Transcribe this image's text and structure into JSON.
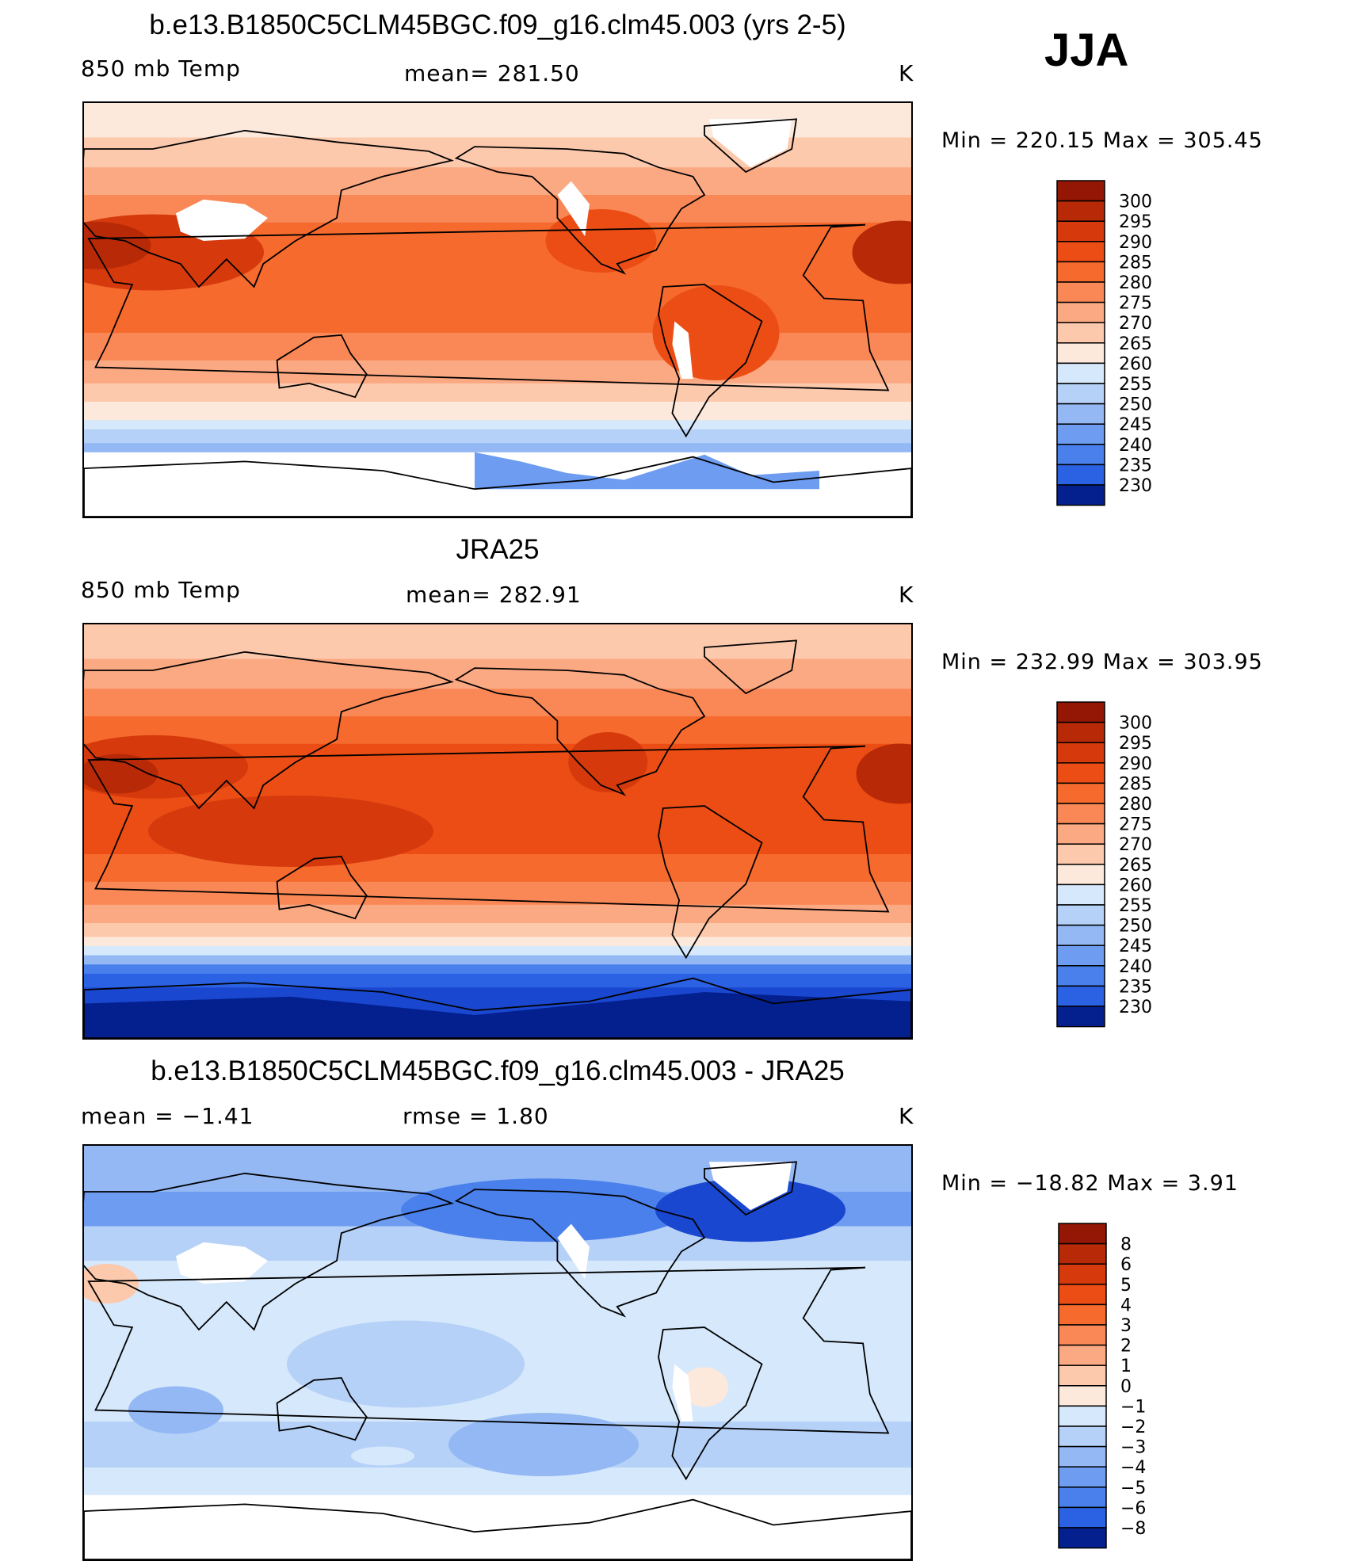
{
  "season": "JJA",
  "colors": {
    "positive_ramp": [
      "#fde8dc",
      "#fcc9ad",
      "#fba983",
      "#f98856",
      "#f66a2e",
      "#ec4d14",
      "#d63a0c",
      "#b82a07",
      "#941705"
    ],
    "negative_ramp": [
      "#d6e8fb",
      "#b6d1f7",
      "#93b8f4",
      "#6d9cf0",
      "#4a80eb",
      "#2b62e3",
      "#1a47cf",
      "#0c33b5",
      "#04208f"
    ],
    "missing": "#ffffff",
    "coastline": "#000000"
  },
  "panels": [
    {
      "title": "b.e13.B1850C5CLM45BGC.f09_g16.clm45.003 (yrs 2-5)",
      "left_label": "850 mb Temp",
      "center_label": "mean=  281.50",
      "units": "K",
      "min_max": "Min  =  220.15  Max  =  305.45",
      "colorbar_labels": [
        "300",
        "295",
        "290",
        "285",
        "280",
        "275",
        "270",
        "265",
        "260",
        "255",
        "250",
        "245",
        "240",
        "235",
        "230"
      ]
    },
    {
      "title": "JRA25",
      "left_label": "850 mb Temp",
      "center_label": "mean=  282.91",
      "units": "K",
      "min_max": "Min  =  232.99  Max  =  303.95",
      "colorbar_labels": [
        "300",
        "295",
        "290",
        "285",
        "280",
        "275",
        "270",
        "265",
        "260",
        "255",
        "250",
        "245",
        "240",
        "235",
        "230"
      ]
    },
    {
      "title": "b.e13.B1850C5CLM45BGC.f09_g16.clm45.003 - JRA25",
      "left_label": "mean  =    −1.41",
      "center_label": "rmse  =     1.80",
      "units": "K",
      "min_max": "Min  =  −18.82  Max  =      3.91",
      "colorbar_labels": [
        "8",
        "6",
        "5",
        "4",
        "3",
        "2",
        "1",
        "0",
        "−1",
        "−2",
        "−3",
        "−4",
        "−5",
        "−6",
        "−8"
      ]
    }
  ],
  "chart_data": [
    {
      "type": "heatmap",
      "title": "b.e13.B1850C5CLM45BGC.f09_g16.clm45.003 (yrs 2-5)",
      "variable": "850 mb Temp",
      "units": "K",
      "mean": 281.5,
      "min": 220.15,
      "max": 305.45,
      "contour_levels": [
        230,
        235,
        240,
        245,
        250,
        255,
        260,
        265,
        270,
        275,
        280,
        285,
        290,
        295,
        300
      ],
      "projection": "cylindrical equidistant, centered on Pacific",
      "missing_data_over_high_terrain": true
    },
    {
      "type": "heatmap",
      "title": "JRA25",
      "variable": "850 mb Temp",
      "units": "K",
      "mean": 282.91,
      "min": 232.99,
      "max": 303.95,
      "contour_levels": [
        230,
        235,
        240,
        245,
        250,
        255,
        260,
        265,
        270,
        275,
        280,
        285,
        290,
        295,
        300
      ],
      "projection": "cylindrical equidistant, centered on Pacific"
    },
    {
      "type": "heatmap",
      "title": "b.e13.B1850C5CLM45BGC.f09_g16.clm45.003 - JRA25",
      "units": "K",
      "mean": -1.41,
      "rmse": 1.8,
      "min": -18.82,
      "max": 3.91,
      "contour_levels": [
        -8,
        -6,
        -5,
        -4,
        -3,
        -2,
        -1,
        0,
        1,
        2,
        3,
        4,
        5,
        6,
        8
      ],
      "projection": "cylindrical equidistant, centered on Pacific"
    }
  ]
}
